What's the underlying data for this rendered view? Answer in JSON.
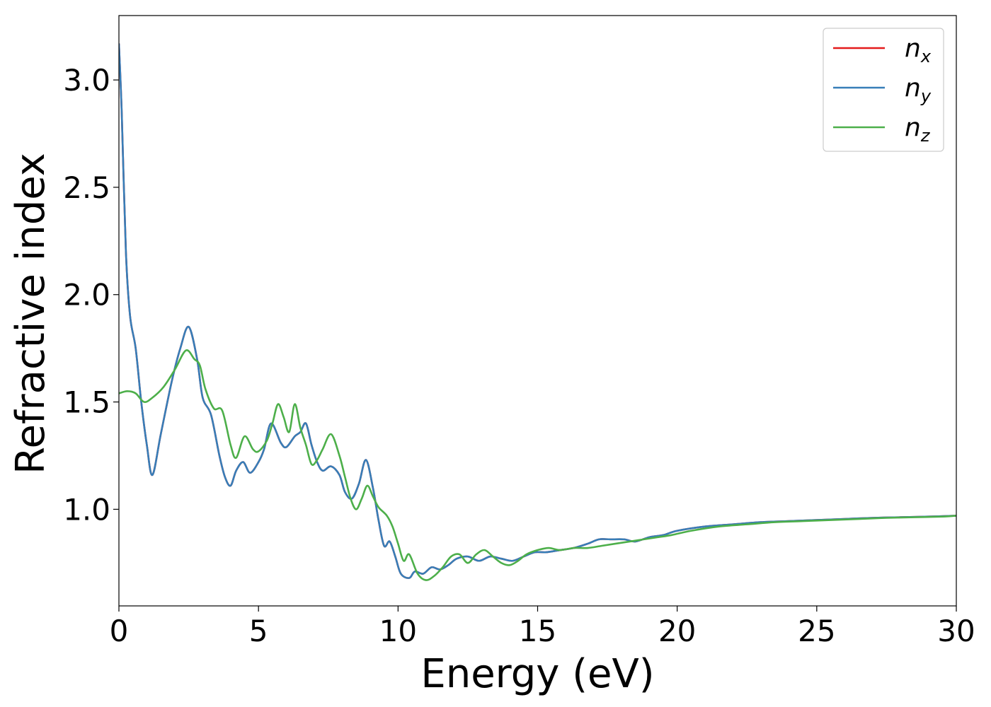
{
  "chart_data": {
    "type": "line",
    "title": "",
    "xlabel": "Energy (eV)",
    "ylabel": "Refractive index",
    "xlim": [
      0,
      30
    ],
    "ylim": [
      0.55,
      3.3
    ],
    "xticks": [
      0,
      5,
      10,
      15,
      20,
      25,
      30
    ],
    "xtick_labels": [
      "0",
      "5",
      "10",
      "15",
      "20",
      "25",
      "30"
    ],
    "yticks": [
      1.0,
      1.5,
      2.0,
      2.5,
      3.0
    ],
    "ytick_labels": [
      "1.0",
      "1.5",
      "2.0",
      "2.5",
      "3.0"
    ],
    "grid": false,
    "legend_position": "top-right",
    "series": [
      {
        "name": "n_x",
        "label_main": "n",
        "label_sub": "x",
        "color": "#e41a1c",
        "x": [
          0.0,
          0.1,
          0.25,
          0.4,
          0.6,
          0.8,
          1.0,
          1.2,
          1.5,
          1.9,
          2.2,
          2.5,
          2.8,
          3.0,
          3.3,
          3.6,
          3.8,
          4.0,
          4.2,
          4.45,
          4.7,
          5.0,
          5.2,
          5.45,
          5.8,
          6.0,
          6.3,
          6.5,
          6.7,
          6.9,
          7.1,
          7.3,
          7.6,
          7.9,
          8.1,
          8.35,
          8.6,
          8.85,
          9.1,
          9.3,
          9.5,
          9.7,
          9.9,
          10.1,
          10.4,
          10.6,
          10.9,
          11.2,
          11.5,
          11.8,
          12.1,
          12.5,
          12.9,
          13.3,
          13.7,
          14.1,
          14.5,
          14.9,
          15.3,
          15.8,
          16.3,
          16.8,
          17.2,
          17.6,
          18.1,
          18.5,
          19.0,
          19.5,
          20.0,
          21.0,
          22.0,
          23.0,
          24.0,
          25.0,
          26.0,
          27.0,
          28.0,
          29.0,
          30.0
        ],
        "values": [
          3.17,
          2.85,
          2.2,
          1.9,
          1.75,
          1.5,
          1.3,
          1.16,
          1.35,
          1.6,
          1.75,
          1.85,
          1.7,
          1.52,
          1.44,
          1.25,
          1.15,
          1.11,
          1.18,
          1.22,
          1.17,
          1.22,
          1.28,
          1.4,
          1.31,
          1.29,
          1.34,
          1.36,
          1.4,
          1.3,
          1.22,
          1.18,
          1.2,
          1.16,
          1.08,
          1.05,
          1.12,
          1.23,
          1.1,
          0.95,
          0.83,
          0.85,
          0.78,
          0.7,
          0.68,
          0.71,
          0.7,
          0.73,
          0.72,
          0.74,
          0.77,
          0.78,
          0.76,
          0.78,
          0.77,
          0.76,
          0.78,
          0.8,
          0.8,
          0.81,
          0.82,
          0.84,
          0.86,
          0.86,
          0.86,
          0.85,
          0.87,
          0.88,
          0.9,
          0.92,
          0.93,
          0.94,
          0.945,
          0.95,
          0.955,
          0.96,
          0.963,
          0.966,
          0.97
        ]
      },
      {
        "name": "n_y",
        "label_main": "n",
        "label_sub": "y",
        "color": "#377eb8",
        "x": [
          0.0,
          0.1,
          0.25,
          0.4,
          0.6,
          0.8,
          1.0,
          1.2,
          1.5,
          1.9,
          2.2,
          2.5,
          2.8,
          3.0,
          3.3,
          3.6,
          3.8,
          4.0,
          4.2,
          4.45,
          4.7,
          5.0,
          5.2,
          5.45,
          5.8,
          6.0,
          6.3,
          6.5,
          6.7,
          6.9,
          7.1,
          7.3,
          7.6,
          7.9,
          8.1,
          8.35,
          8.6,
          8.85,
          9.1,
          9.3,
          9.5,
          9.7,
          9.9,
          10.1,
          10.4,
          10.6,
          10.9,
          11.2,
          11.5,
          11.8,
          12.1,
          12.5,
          12.9,
          13.3,
          13.7,
          14.1,
          14.5,
          14.9,
          15.3,
          15.8,
          16.3,
          16.8,
          17.2,
          17.6,
          18.1,
          18.5,
          19.0,
          19.5,
          20.0,
          21.0,
          22.0,
          23.0,
          24.0,
          25.0,
          26.0,
          27.0,
          28.0,
          29.0,
          30.0
        ],
        "values": [
          3.17,
          2.85,
          2.2,
          1.9,
          1.75,
          1.5,
          1.3,
          1.16,
          1.35,
          1.6,
          1.75,
          1.85,
          1.7,
          1.52,
          1.44,
          1.25,
          1.15,
          1.11,
          1.18,
          1.22,
          1.17,
          1.22,
          1.28,
          1.4,
          1.31,
          1.29,
          1.34,
          1.36,
          1.4,
          1.3,
          1.22,
          1.18,
          1.2,
          1.16,
          1.08,
          1.05,
          1.12,
          1.23,
          1.1,
          0.95,
          0.83,
          0.85,
          0.78,
          0.7,
          0.68,
          0.71,
          0.7,
          0.73,
          0.72,
          0.74,
          0.77,
          0.78,
          0.76,
          0.78,
          0.77,
          0.76,
          0.78,
          0.8,
          0.8,
          0.81,
          0.82,
          0.84,
          0.86,
          0.86,
          0.86,
          0.85,
          0.87,
          0.88,
          0.9,
          0.92,
          0.93,
          0.94,
          0.945,
          0.95,
          0.955,
          0.96,
          0.963,
          0.966,
          0.97
        ]
      },
      {
        "name": "n_z",
        "label_main": "n",
        "label_sub": "z",
        "color": "#4daf4a",
        "x": [
          0.0,
          0.3,
          0.6,
          0.9,
          1.2,
          1.6,
          2.0,
          2.4,
          2.7,
          2.9,
          3.1,
          3.4,
          3.7,
          4.0,
          4.2,
          4.5,
          4.8,
          5.0,
          5.3,
          5.5,
          5.7,
          5.9,
          6.1,
          6.3,
          6.5,
          6.7,
          6.9,
          7.1,
          7.3,
          7.6,
          7.9,
          8.1,
          8.3,
          8.5,
          8.7,
          8.9,
          9.1,
          9.3,
          9.6,
          9.8,
          10.0,
          10.2,
          10.4,
          10.7,
          11.0,
          11.3,
          11.6,
          11.9,
          12.2,
          12.5,
          12.8,
          13.1,
          13.4,
          13.7,
          14.0,
          14.3,
          14.6,
          15.0,
          15.4,
          15.8,
          16.3,
          16.8,
          17.3,
          17.8,
          18.3,
          18.8,
          19.3,
          19.8,
          20.5,
          21.5,
          22.5,
          23.5,
          24.5,
          25.5,
          26.5,
          27.5,
          28.5,
          29.5,
          30.0
        ],
        "values": [
          1.54,
          1.55,
          1.54,
          1.5,
          1.52,
          1.57,
          1.65,
          1.74,
          1.7,
          1.67,
          1.56,
          1.47,
          1.46,
          1.3,
          1.24,
          1.34,
          1.28,
          1.27,
          1.32,
          1.4,
          1.49,
          1.43,
          1.36,
          1.49,
          1.38,
          1.3,
          1.21,
          1.23,
          1.28,
          1.35,
          1.25,
          1.15,
          1.05,
          1.0,
          1.05,
          1.11,
          1.06,
          1.01,
          0.97,
          0.92,
          0.84,
          0.76,
          0.79,
          0.7,
          0.67,
          0.69,
          0.73,
          0.78,
          0.79,
          0.75,
          0.79,
          0.81,
          0.78,
          0.75,
          0.74,
          0.76,
          0.79,
          0.81,
          0.82,
          0.81,
          0.82,
          0.82,
          0.83,
          0.84,
          0.85,
          0.86,
          0.87,
          0.88,
          0.9,
          0.92,
          0.93,
          0.94,
          0.945,
          0.95,
          0.955,
          0.96,
          0.963,
          0.966,
          0.97
        ]
      }
    ]
  }
}
